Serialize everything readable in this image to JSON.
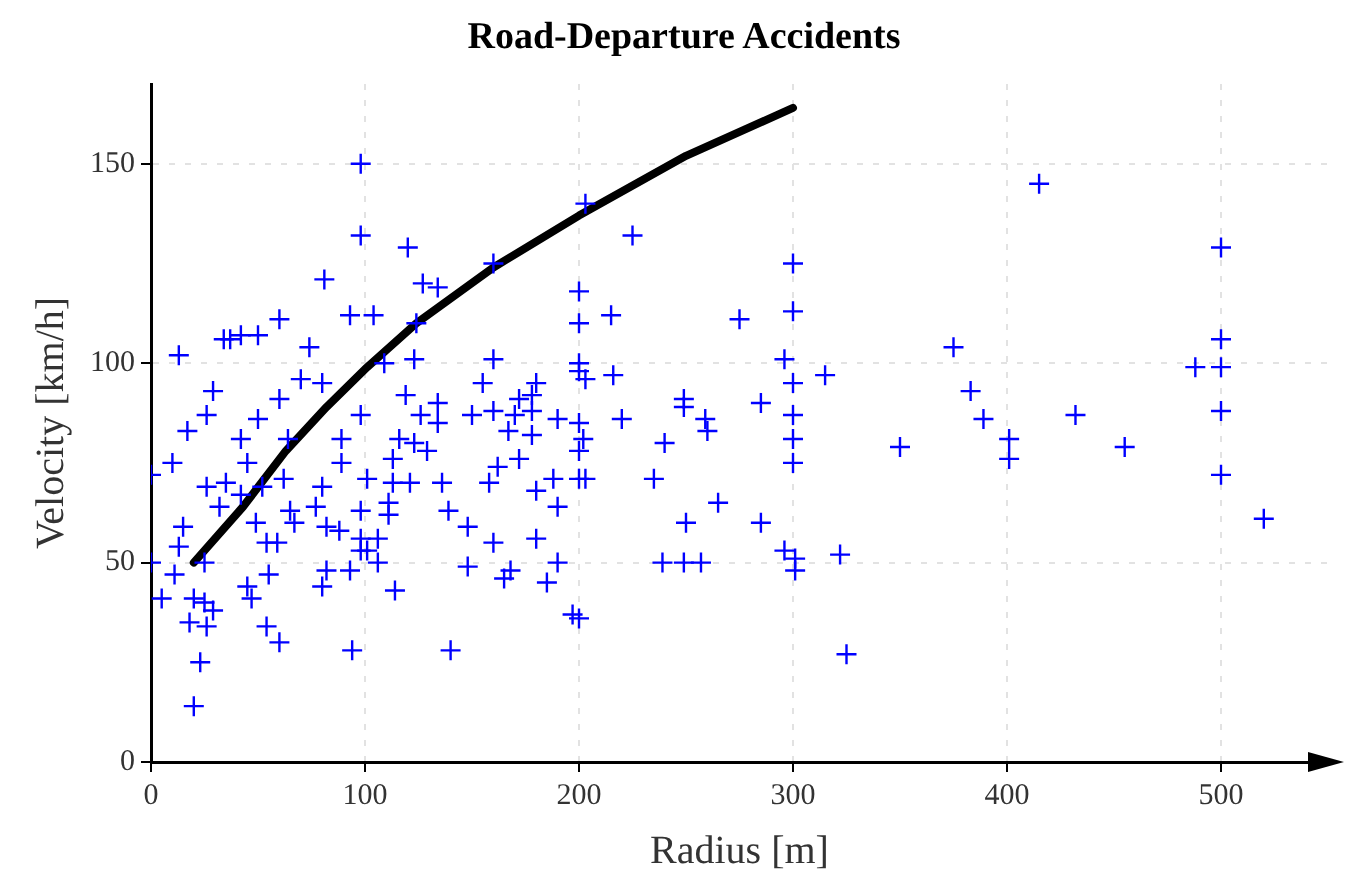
{
  "chart_data": {
    "type": "scatter",
    "title": "Road-Departure Accidents",
    "xlabel": "Radius [m]",
    "ylabel": "Velocity [km/h]",
    "xlim": [
      0,
      550
    ],
    "xticks": [
      0,
      100,
      200,
      300,
      400,
      500
    ],
    "ylim": [
      0,
      170
    ],
    "yticks": [
      0,
      50,
      100,
      150
    ],
    "grid": true,
    "legend": false,
    "series": [
      {
        "color": "#0000ff",
        "marker": "cross",
        "x": [
          98,
          98,
          81,
          93,
          60,
          50,
          42,
          37,
          34,
          13,
          74,
          70,
          80,
          29,
          26,
          60,
          17,
          50,
          42,
          64,
          45,
          10,
          0,
          89,
          89,
          98,
          52,
          62,
          26,
          35,
          32,
          42,
          80,
          77,
          65,
          67,
          49,
          82,
          88,
          98,
          15,
          13,
          54,
          59,
          0,
          25,
          11,
          5,
          82,
          93,
          98,
          55,
          80,
          45,
          47,
          20,
          25,
          29,
          18,
          26,
          54,
          60,
          94,
          23,
          20,
          120,
          127,
          134,
          160,
          104,
          124,
          123,
          160,
          109,
          155,
          180,
          119,
          172,
          178,
          178,
          134,
          126,
          150,
          160,
          170,
          190,
          134,
          167,
          178,
          116,
          123,
          129,
          113,
          172,
          162,
          101,
          113,
          121,
          136,
          158,
          180,
          188,
          111,
          111,
          139,
          190,
          98,
          106,
          101,
          106,
          148,
          160,
          180,
          148,
          168,
          165,
          190,
          185,
          114,
          140,
          197,
          203,
          225,
          200,
          200,
          215,
          275,
          300,
          300,
          296,
          300,
          315,
          200,
          200,
          203,
          216,
          249,
          249,
          259,
          260,
          285,
          300,
          300,
          300,
          220,
          200,
          202,
          200,
          240,
          200,
          203,
          235,
          265,
          250,
          285,
          239,
          249,
          257,
          296,
          301,
          301,
          322,
          200,
          325,
          350,
          375,
          383,
          389,
          401,
          401,
          415,
          432,
          455,
          488,
          500,
          500,
          500,
          500,
          500,
          520
        ],
        "values": [
          150,
          132,
          121,
          112,
          111,
          107,
          107,
          106,
          106,
          102,
          104,
          96,
          95,
          93,
          87,
          91,
          83,
          86,
          81,
          81,
          75,
          75,
          72,
          81,
          75,
          87,
          69,
          71,
          69,
          70,
          64,
          67,
          69,
          64,
          63,
          60,
          60,
          59,
          58,
          63,
          59,
          54,
          55,
          55,
          50,
          50,
          47,
          41,
          48,
          48,
          53,
          47,
          44,
          44,
          41,
          41,
          40,
          38,
          35,
          34,
          34,
          30,
          28,
          25,
          14,
          129,
          120,
          119,
          125,
          112,
          110,
          101,
          101,
          100,
          95,
          95,
          92,
          91,
          92,
          88,
          90,
          87,
          87,
          88,
          87,
          86,
          85,
          83,
          82,
          81,
          80,
          78,
          76,
          76,
          74,
          71,
          70,
          70,
          70,
          70,
          68,
          71,
          65,
          62,
          63,
          64,
          56,
          56,
          53,
          50,
          59,
          55,
          56,
          49,
          48,
          46,
          50,
          45,
          43,
          28,
          37,
          140,
          132,
          118,
          110,
          112,
          111,
          125,
          113,
          101,
          95,
          97,
          100,
          98,
          96,
          97,
          91,
          89,
          86,
          83,
          90,
          87,
          81,
          75,
          86,
          85,
          81,
          78,
          80,
          71,
          71,
          71,
          65,
          60,
          60,
          50,
          50,
          50,
          53,
          51,
          48,
          52,
          36,
          27,
          79,
          104,
          93,
          86,
          81,
          76,
          145,
          87,
          79,
          99,
          129,
          106,
          99,
          88,
          72,
          61
        ]
      },
      {
        "type": "line",
        "color": "#000000",
        "marker": "none",
        "x": [
          20,
          43,
          63,
          82,
          101,
          124,
          160,
          200,
          250,
          300
        ],
        "values": [
          50,
          64,
          78,
          89,
          99,
          110,
          124,
          137,
          152,
          164
        ]
      }
    ]
  }
}
